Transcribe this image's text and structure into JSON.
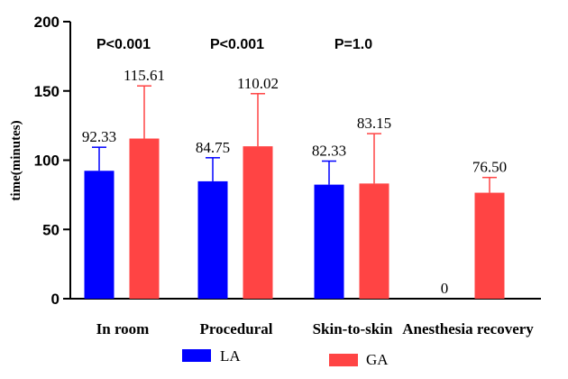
{
  "chart_data": {
    "type": "bar",
    "title": "",
    "xlabel": "",
    "ylabel": "time(minutes)",
    "ylim": [
      0,
      200
    ],
    "yticks": [
      "0",
      "50",
      "100",
      "150",
      "200"
    ],
    "categories": [
      "In room",
      "Procedural",
      "Skin-to-skin",
      "Anesthesia recovery"
    ],
    "series": [
      {
        "name": "LA",
        "color": "#0000ff",
        "values": [
          92.33,
          84.75,
          82.33,
          0
        ],
        "error": [
          17,
          17,
          17,
          null
        ],
        "labels": [
          "92.33",
          "84.75",
          "82.33",
          "0"
        ]
      },
      {
        "name": "GA",
        "color": "#ff4444",
        "values": [
          115.61,
          110.02,
          83.15,
          76.5
        ],
        "error": [
          38,
          38,
          36,
          11
        ],
        "labels": [
          "115.61",
          "110.02",
          "83.15",
          "76.50"
        ]
      }
    ],
    "annotations": [
      "P<0.001",
      "P<0.001",
      "P=1.0",
      ""
    ],
    "legend_position": "bottom",
    "grid": false
  }
}
